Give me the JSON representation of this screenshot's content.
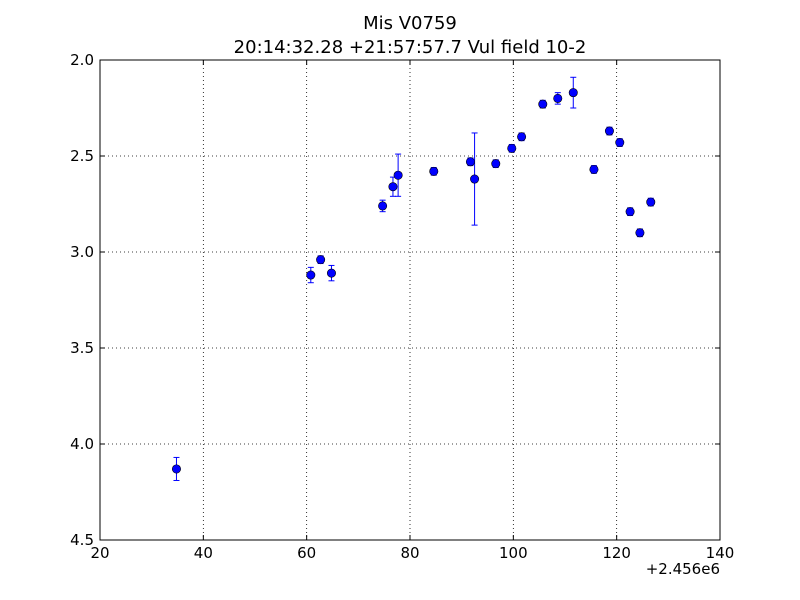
{
  "chart_data": {
    "type": "scatter",
    "title": "Mis V0759",
    "subtitle": "20:14:32.28 +21:57:57.7 Vul field 10-2",
    "xlabel": "",
    "ylabel": "",
    "x_offset_label": "+2.456e6",
    "xlim": [
      20,
      140
    ],
    "ylim": [
      4.5,
      2.0
    ],
    "y_inverted": true,
    "grid": true,
    "x_ticks": [
      "20",
      "40",
      "60",
      "80",
      "100",
      "120",
      "140"
    ],
    "y_ticks": [
      "2.0",
      "2.5",
      "3.0",
      "3.5",
      "4.0",
      "4.5"
    ],
    "marker_color": "#0000ff",
    "points": [
      {
        "x": 34.8,
        "y": 4.13,
        "err": 0.06
      },
      {
        "x": 60.8,
        "y": 3.12,
        "err": 0.04
      },
      {
        "x": 62.7,
        "y": 3.04,
        "err": 0.02
      },
      {
        "x": 64.8,
        "y": 3.11,
        "err": 0.04
      },
      {
        "x": 74.7,
        "y": 2.76,
        "err": 0.03
      },
      {
        "x": 76.7,
        "y": 2.66,
        "err": 0.05
      },
      {
        "x": 77.7,
        "y": 2.6,
        "err": 0.11
      },
      {
        "x": 84.6,
        "y": 2.58,
        "err": 0.02
      },
      {
        "x": 91.7,
        "y": 2.53,
        "err": 0.02
      },
      {
        "x": 92.5,
        "y": 2.62,
        "err": 0.24
      },
      {
        "x": 96.6,
        "y": 2.54,
        "err": 0.02
      },
      {
        "x": 99.7,
        "y": 2.46,
        "err": 0.02
      },
      {
        "x": 101.6,
        "y": 2.4,
        "err": 0.02
      },
      {
        "x": 105.7,
        "y": 2.23,
        "err": 0.02
      },
      {
        "x": 108.6,
        "y": 2.2,
        "err": 0.03
      },
      {
        "x": 111.6,
        "y": 2.17,
        "err": 0.08
      },
      {
        "x": 115.6,
        "y": 2.57,
        "err": 0.02
      },
      {
        "x": 118.6,
        "y": 2.37,
        "err": 0.02
      },
      {
        "x": 120.6,
        "y": 2.43,
        "err": 0.02
      },
      {
        "x": 122.6,
        "y": 2.79,
        "err": 0.02
      },
      {
        "x": 124.5,
        "y": 2.9,
        "err": 0.02
      },
      {
        "x": 126.6,
        "y": 2.74,
        "err": 0.02
      }
    ]
  }
}
